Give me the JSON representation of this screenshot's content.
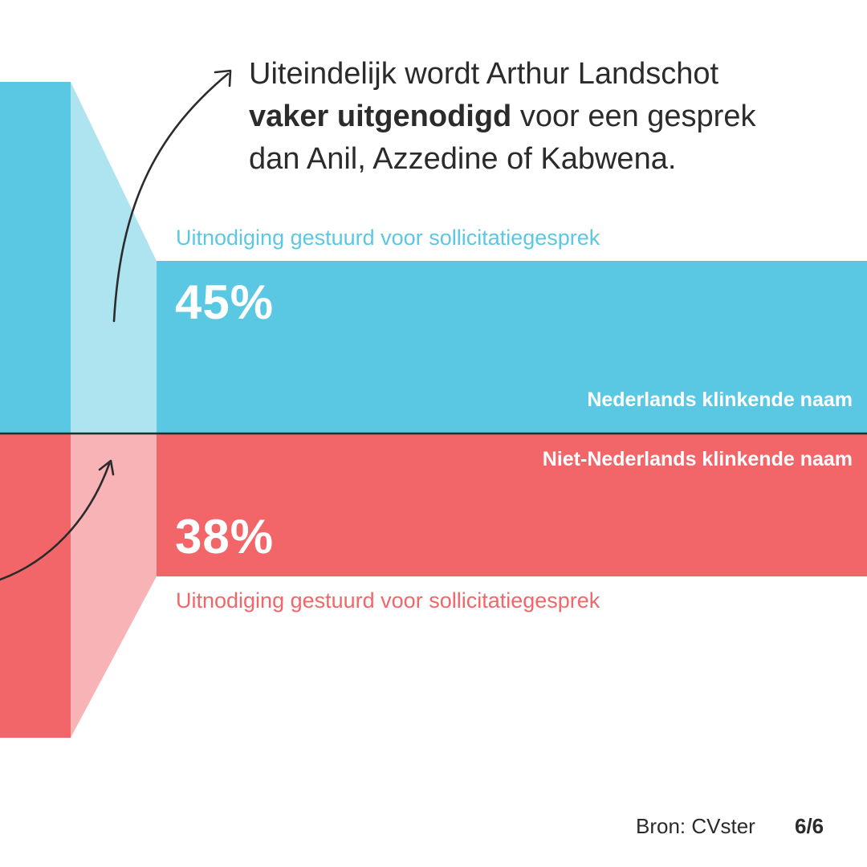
{
  "headline": {
    "part1": "Uiteindelijk wordt Arthur Landschot",
    "bold": "vaker uitgenodigd",
    "part2": "voor een gesprek",
    "part3": "dan Anil, Azzedine of Kabwena."
  },
  "colors": {
    "blue": "#5bc8e3",
    "blue_light": "#ade4f0",
    "red": "#f2666a",
    "red_light": "#f8b3b6",
    "divider": "#2b2b2b",
    "text": "#2b2b2b"
  },
  "chart_data": {
    "type": "bar",
    "categories": [
      "Nederlands klinkende naam",
      "Niet-Nederlands klinkende naam"
    ],
    "values": [
      45,
      38
    ],
    "unit": "%",
    "value_labels": [
      "45%",
      "38%"
    ],
    "series_label": "Uitnodiging gestuurd voor sollicitatiegesprek"
  },
  "labels": {
    "top_series": "Uitnodiging gestuurd voor sollicitatiegesprek",
    "bottom_series": "Uitnodiging gestuurd voor sollicitatiegesprek"
  },
  "footer": {
    "source": "Bron: CVster",
    "page": "6/6"
  }
}
